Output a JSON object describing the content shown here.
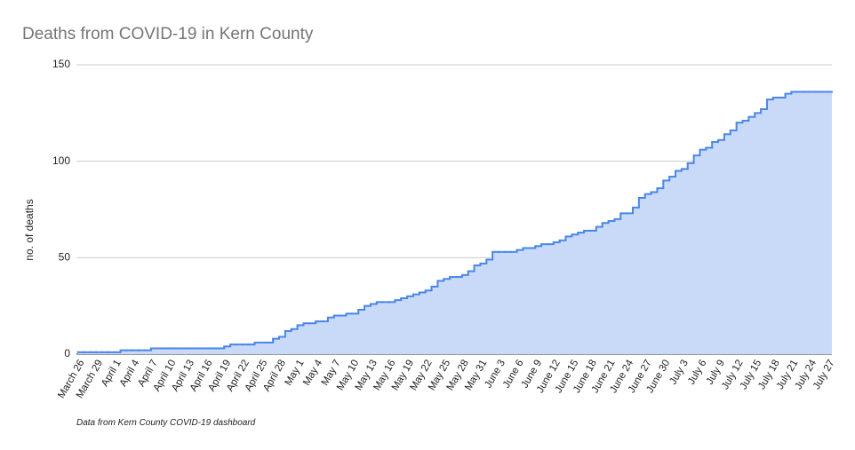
{
  "chart_data": {
    "type": "stepped-area",
    "title": "Deaths from COVID-19 in Kern County",
    "y_axis_label": "no. of deaths",
    "footnote": "Data from Kern County COVID-19 dashboard",
    "categories": [
      "March 26",
      null,
      null,
      "March 29",
      null,
      null,
      "April 1",
      null,
      null,
      "April 4",
      null,
      null,
      "April 7",
      null,
      null,
      "April 10",
      null,
      null,
      "April 13",
      null,
      null,
      "April 16",
      null,
      null,
      "April 19",
      null,
      null,
      "April 22",
      null,
      null,
      "April 25",
      null,
      null,
      "April 28",
      null,
      null,
      "May 1",
      null,
      null,
      "May 4",
      null,
      null,
      "May 7",
      null,
      null,
      "May 10",
      null,
      null,
      "May 13",
      null,
      null,
      "May 16",
      null,
      null,
      "May 19",
      null,
      null,
      "May 22",
      null,
      null,
      "May 25",
      null,
      null,
      "May 28",
      null,
      null,
      "May 31",
      null,
      null,
      "June 3",
      null,
      null,
      "June 6",
      null,
      null,
      "June 9",
      null,
      null,
      "June 12",
      null,
      null,
      "June 15",
      null,
      null,
      "June 18",
      null,
      null,
      "June 21",
      null,
      null,
      "June 24",
      null,
      null,
      "June 27",
      null,
      null,
      "June 30",
      null,
      null,
      "July 3",
      null,
      null,
      "July 6",
      null,
      null,
      "July 9",
      null,
      null,
      "July 12",
      null,
      null,
      "July 15",
      null,
      null,
      "July 18",
      null,
      null,
      "July 21",
      null,
      null,
      "July 24",
      null,
      null,
      "July 27"
    ],
    "values": [
      1,
      1,
      1,
      1,
      1,
      1,
      1,
      2,
      2,
      2,
      2,
      2,
      3,
      3,
      3,
      3,
      3,
      3,
      3,
      3,
      3,
      3,
      3,
      3,
      4,
      5,
      5,
      5,
      5,
      6,
      6,
      6,
      8,
      9,
      12,
      13,
      15,
      16,
      16,
      17,
      17,
      19,
      20,
      20,
      21,
      21,
      23,
      25,
      26,
      27,
      27,
      27,
      28,
      29,
      30,
      31,
      32,
      33,
      35,
      38,
      39,
      40,
      40,
      41,
      43,
      46,
      47,
      49,
      53,
      53,
      53,
      53,
      54,
      55,
      55,
      56,
      57,
      57,
      58,
      59,
      61,
      62,
      63,
      64,
      64,
      66,
      68,
      69,
      70,
      73,
      73,
      76,
      81,
      83,
      84,
      86,
      90,
      92,
      95,
      96,
      99,
      103,
      106,
      107,
      110,
      111,
      114,
      116,
      120,
      121,
      123,
      125,
      127,
      132,
      133,
      133,
      135,
      136,
      136,
      136,
      136,
      136,
      136,
      136
    ],
    "color": "#4a86e8",
    "fill_color": "#c9daf8",
    "ylim": [
      0,
      150
    ],
    "yticks": [
      0,
      50,
      100,
      150
    ],
    "grid": true
  }
}
